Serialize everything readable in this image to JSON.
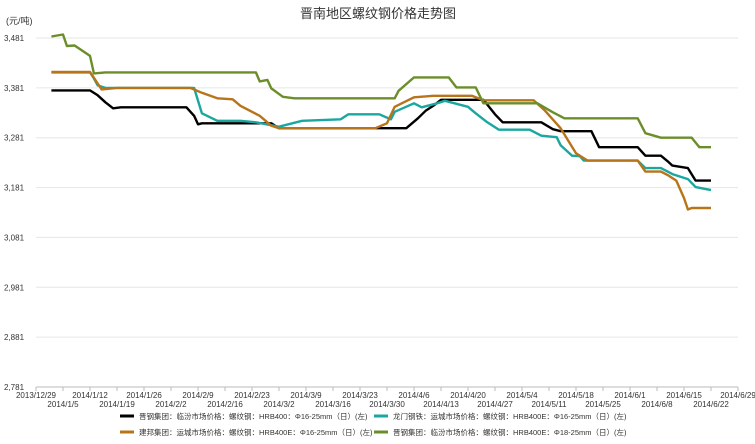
{
  "chart_data": {
    "type": "line",
    "title": "晋南地区螺纹钢价格走势图",
    "ylabel": "(元/吨)",
    "xlabel": "",
    "ylim": [
      2781,
      3481
    ],
    "y_ticks": [
      "3,481",
      "3,381",
      "3,281",
      "3,181",
      "3,081",
      "2,981",
      "2,881",
      "2,781"
    ],
    "y_tick_values": [
      3481,
      3381,
      3281,
      3181,
      3081,
      2981,
      2881,
      2781
    ],
    "x_range": [
      "2013-12-29",
      "2014-06-29"
    ],
    "x_ticks_upper": [
      "2013/12/29",
      "2014/1/12",
      "2014/1/26",
      "2014/2/9",
      "2014/2/23",
      "2014/3/9",
      "2014/3/23",
      "2014/4/6",
      "2014/4/20",
      "2014/5/4",
      "2014/5/18",
      "2014/6/1",
      "2014/6/15",
      "2014/6/29"
    ],
    "x_ticks_upper_dates": [
      "2013-12-29",
      "2014-01-12",
      "2014-01-26",
      "2014-02-09",
      "2014-02-23",
      "2014-03-09",
      "2014-03-23",
      "2014-04-06",
      "2014-04-20",
      "2014-05-04",
      "2014-05-18",
      "2014-06-01",
      "2014-06-15",
      "2014-06-29"
    ],
    "x_ticks_lower": [
      "2014/1/5",
      "2014/1/19",
      "2014/2/2",
      "2014/2/16",
      "2014/3/2",
      "2014/3/16",
      "2014/3/30",
      "2014/4/13",
      "2014/4/27",
      "2014/5/11",
      "2014/5/25",
      "2014/6/8",
      "2014/6/22"
    ],
    "x_ticks_lower_dates": [
      "2014-01-05",
      "2014-01-19",
      "2014-02-02",
      "2014-02-16",
      "2014-03-02",
      "2014-03-16",
      "2014-03-30",
      "2014-04-13",
      "2014-04-27",
      "2014-05-11",
      "2014-05-25",
      "2014-06-08",
      "2014-06-22"
    ],
    "grid": "horizontal",
    "legend_position": "bottom",
    "series": [
      {
        "name": "晋钢集团：临汾市场价格：螺纹钢：HRB400：Φ16-25mm（日）(左)",
        "color": "#000000",
        "points": [
          [
            "2014-01-02",
            3376
          ],
          [
            "2014-01-12",
            3376
          ],
          [
            "2014-01-14",
            3366
          ],
          [
            "2014-01-16",
            3352
          ],
          [
            "2014-01-18",
            3340
          ],
          [
            "2014-01-20",
            3342
          ],
          [
            "2014-02-06",
            3342
          ],
          [
            "2014-02-08",
            3325
          ],
          [
            "2014-02-09",
            3308
          ],
          [
            "2014-02-10",
            3310
          ],
          [
            "2014-02-28",
            3310
          ],
          [
            "2014-03-02",
            3300
          ],
          [
            "2014-04-04",
            3300
          ],
          [
            "2014-04-07",
            3320
          ],
          [
            "2014-04-09",
            3335
          ],
          [
            "2014-04-11",
            3345
          ],
          [
            "2014-04-13",
            3357
          ],
          [
            "2014-04-24",
            3357
          ],
          [
            "2014-04-27",
            3328
          ],
          [
            "2014-04-29",
            3312
          ],
          [
            "2014-05-09",
            3312
          ],
          [
            "2014-05-12",
            3298
          ],
          [
            "2014-05-14",
            3294
          ],
          [
            "2014-05-22",
            3294
          ],
          [
            "2014-05-24",
            3262
          ],
          [
            "2014-06-03",
            3262
          ],
          [
            "2014-06-05",
            3245
          ],
          [
            "2014-06-09",
            3245
          ],
          [
            "2014-06-11",
            3232
          ],
          [
            "2014-06-12",
            3225
          ],
          [
            "2014-06-16",
            3220
          ],
          [
            "2014-06-18",
            3195
          ],
          [
            "2014-06-22",
            3195
          ]
        ]
      },
      {
        "name": "龙门钢铁：运城市场价格：螺纹钢：HRB400E：Φ16-25mm（日）(左)",
        "color": "#1aa7a0",
        "points": [
          [
            "2014-01-02",
            3412
          ],
          [
            "2014-01-12",
            3412
          ],
          [
            "2014-01-13",
            3400
          ],
          [
            "2014-01-14",
            3386
          ],
          [
            "2014-01-16",
            3381
          ],
          [
            "2014-02-08",
            3381
          ],
          [
            "2014-02-10",
            3330
          ],
          [
            "2014-02-14",
            3315
          ],
          [
            "2014-02-20",
            3315
          ],
          [
            "2014-02-24",
            3312
          ],
          [
            "2014-03-02",
            3303
          ],
          [
            "2014-03-08",
            3315
          ],
          [
            "2014-03-18",
            3318
          ],
          [
            "2014-03-20",
            3328
          ],
          [
            "2014-03-28",
            3328
          ],
          [
            "2014-03-31",
            3318
          ],
          [
            "2014-04-01",
            3333
          ],
          [
            "2014-04-06",
            3350
          ],
          [
            "2014-04-08",
            3342
          ],
          [
            "2014-04-12",
            3350
          ],
          [
            "2014-04-14",
            3355
          ],
          [
            "2014-04-20",
            3343
          ],
          [
            "2014-04-22",
            3330
          ],
          [
            "2014-04-25",
            3312
          ],
          [
            "2014-04-28",
            3297
          ],
          [
            "2014-05-06",
            3297
          ],
          [
            "2014-05-09",
            3285
          ],
          [
            "2014-05-13",
            3282
          ],
          [
            "2014-05-14",
            3266
          ],
          [
            "2014-05-17",
            3245
          ],
          [
            "2014-05-19",
            3244
          ],
          [
            "2014-05-20",
            3235
          ],
          [
            "2014-06-03",
            3235
          ],
          [
            "2014-06-05",
            3220
          ],
          [
            "2014-06-09",
            3220
          ],
          [
            "2014-06-12",
            3208
          ],
          [
            "2014-06-16",
            3198
          ],
          [
            "2014-06-18",
            3182
          ],
          [
            "2014-06-22",
            3176
          ]
        ]
      },
      {
        "name": "建邦集团：运城市场价格：螺纹钢：HRB400E：Φ16-25mm（日）(左)",
        "color": "#b8741a",
        "points": [
          [
            "2014-01-02",
            3413
          ],
          [
            "2014-01-12",
            3413
          ],
          [
            "2014-01-15",
            3378
          ],
          [
            "2014-01-19",
            3381
          ],
          [
            "2014-02-07",
            3381
          ],
          [
            "2014-02-10",
            3371
          ],
          [
            "2014-02-14",
            3360
          ],
          [
            "2014-02-18",
            3358
          ],
          [
            "2014-02-20",
            3345
          ],
          [
            "2014-02-25",
            3325
          ],
          [
            "2014-02-28",
            3305
          ],
          [
            "2014-03-02",
            3300
          ],
          [
            "2014-03-27",
            3300
          ],
          [
            "2014-03-30",
            3310
          ],
          [
            "2014-04-01",
            3343
          ],
          [
            "2014-04-06",
            3362
          ],
          [
            "2014-04-11",
            3365
          ],
          [
            "2014-04-21",
            3365
          ],
          [
            "2014-04-24",
            3356
          ],
          [
            "2014-05-07",
            3356
          ],
          [
            "2014-05-10",
            3335
          ],
          [
            "2014-05-14",
            3300
          ],
          [
            "2014-05-18",
            3250
          ],
          [
            "2014-05-21",
            3235
          ],
          [
            "2014-06-03",
            3235
          ],
          [
            "2014-06-05",
            3213
          ],
          [
            "2014-06-09",
            3213
          ],
          [
            "2014-06-11",
            3205
          ],
          [
            "2014-06-13",
            3195
          ],
          [
            "2014-06-15",
            3160
          ],
          [
            "2014-06-16",
            3137
          ],
          [
            "2014-06-17",
            3140
          ],
          [
            "2014-06-22",
            3140
          ]
        ]
      },
      {
        "name": "晋钢集团：临汾市场价格：螺纹钢：HRB400E：Φ18-25mm（日）(左)",
        "color": "#6b8e2b",
        "points": [
          [
            "2014-01-02",
            3484
          ],
          [
            "2014-01-05",
            3488
          ],
          [
            "2014-01-06",
            3465
          ],
          [
            "2014-01-08",
            3466
          ],
          [
            "2014-01-12",
            3445
          ],
          [
            "2014-01-13",
            3410
          ],
          [
            "2014-01-16",
            3412
          ],
          [
            "2014-02-24",
            3412
          ],
          [
            "2014-02-25",
            3394
          ],
          [
            "2014-02-27",
            3397
          ],
          [
            "2014-02-28",
            3380
          ],
          [
            "2014-03-03",
            3363
          ],
          [
            "2014-03-06",
            3360
          ],
          [
            "2014-04-01",
            3360
          ],
          [
            "2014-04-02",
            3375
          ],
          [
            "2014-04-06",
            3402
          ],
          [
            "2014-04-15",
            3402
          ],
          [
            "2014-04-17",
            3382
          ],
          [
            "2014-04-22",
            3382
          ],
          [
            "2014-04-24",
            3350
          ],
          [
            "2014-05-08",
            3350
          ],
          [
            "2014-05-12",
            3332
          ],
          [
            "2014-05-15",
            3320
          ],
          [
            "2014-06-03",
            3320
          ],
          [
            "2014-06-05",
            3290
          ],
          [
            "2014-06-09",
            3281
          ],
          [
            "2014-06-17",
            3281
          ],
          [
            "2014-06-19",
            3262
          ],
          [
            "2014-06-22",
            3262
          ]
        ]
      }
    ]
  }
}
